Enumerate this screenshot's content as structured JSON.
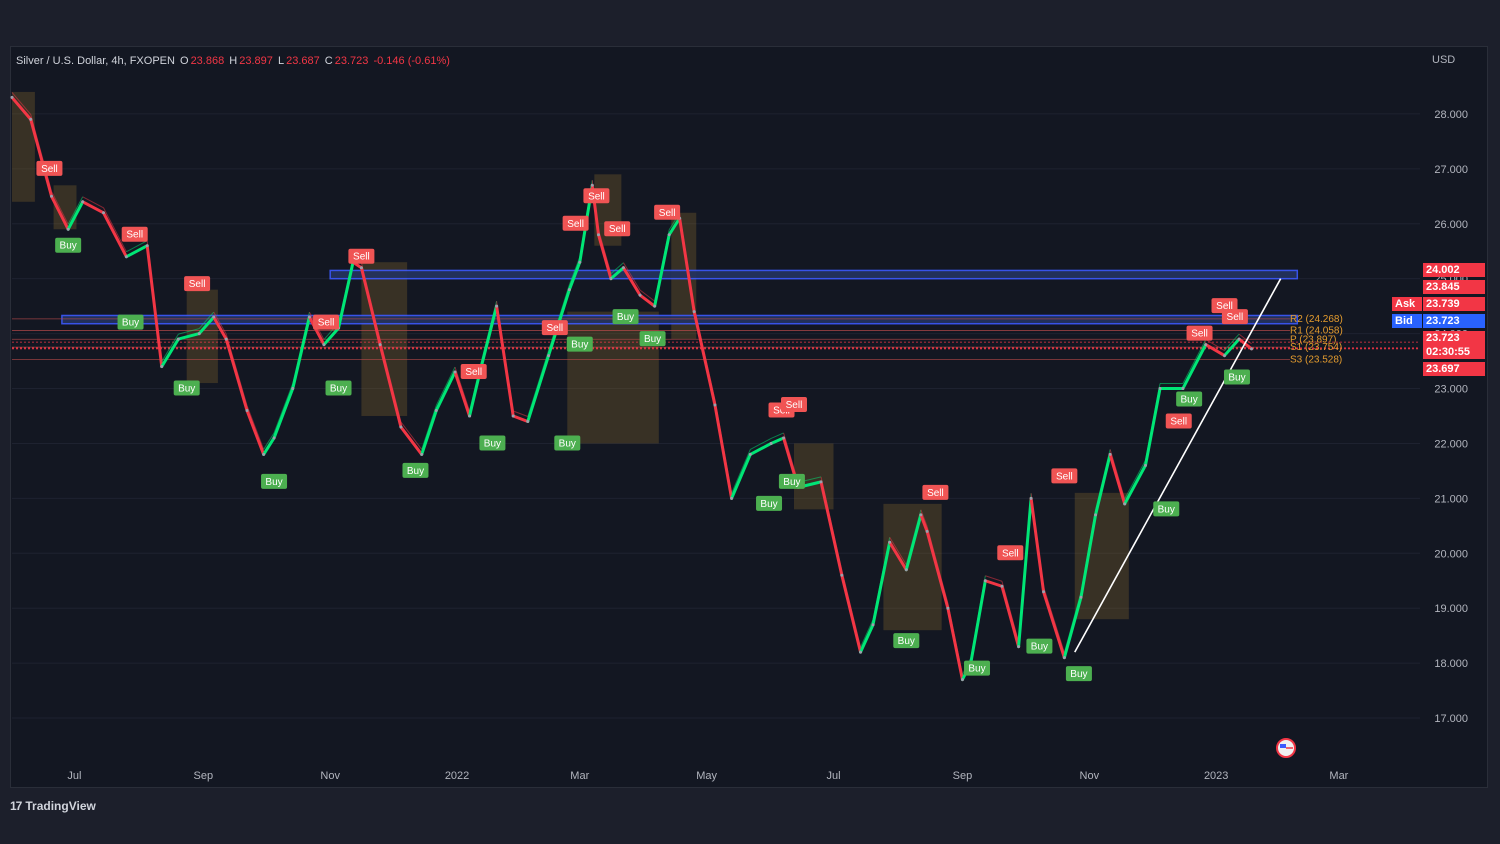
{
  "header": {
    "symbol": "Silver / U.S. Dollar, 4h, FXOPEN",
    "open_label": "O",
    "open": "23.868",
    "high_label": "H",
    "high": "23.897",
    "low_label": "L",
    "low": "23.687",
    "close_label": "C",
    "close": "23.723",
    "change": "-0.146 (-0.61%)"
  },
  "currency": "USD",
  "brand": {
    "logo": "17",
    "name": "TradingView"
  },
  "price_tags": {
    "high_tag": "24.002",
    "level_tag": "23.845",
    "ask_label": "Ask",
    "ask": "23.739",
    "bid_label": "Bid",
    "bid": "23.723",
    "last": "23.723",
    "countdown": "02:30:55",
    "low_tag": "23.697"
  },
  "pivot_labels": [
    "R2 (24.268)",
    "R1 (24.058)",
    "P (23.897)",
    "S1 (23.754)",
    "S3 (23.528)"
  ],
  "colors": {
    "up": "#00e676",
    "down": "#f23645",
    "band": "#3d5afe",
    "buy": "#4caf50",
    "sell": "#f05454",
    "trend": "#ffffff",
    "box": "#8a6a2a"
  },
  "chart_data": {
    "type": "line",
    "title": "Silver / U.S. Dollar, 4h, FXOPEN",
    "ylabel": "USD",
    "ylim": [
      16.2,
      29.2
    ],
    "y_ticks": [
      28,
      27,
      26,
      25,
      24,
      23,
      22,
      21,
      20,
      19,
      18,
      17
    ],
    "y_tick_labels": [
      "28.000",
      "27.000",
      "26.000",
      "25.000",
      "24.000",
      "23.000",
      "22.000",
      "21.000",
      "20.000",
      "19.000",
      "18.000",
      "17.000"
    ],
    "x_range": [
      "2021-06-01",
      "2023-04-09"
    ],
    "x_ticks": [
      {
        "date": "2021-07-01",
        "label": "Jul"
      },
      {
        "date": "2021-09-01",
        "label": "Sep"
      },
      {
        "date": "2021-11-01",
        "label": "Nov"
      },
      {
        "date": "2022-01-01",
        "label": "2022"
      },
      {
        "date": "2022-03-01",
        "label": "Mar"
      },
      {
        "date": "2022-05-01",
        "label": "May"
      },
      {
        "date": "2022-07-01",
        "label": "Jul"
      },
      {
        "date": "2022-09-01",
        "label": "Sep"
      },
      {
        "date": "2022-11-01",
        "label": "Nov"
      },
      {
        "date": "2023-01-01",
        "label": "2023"
      },
      {
        "date": "2023-03-01",
        "label": "Mar"
      }
    ],
    "series": [
      {
        "points": [
          [
            "2021-06-01",
            28.3
          ],
          [
            "2021-06-10",
            27.9
          ],
          [
            "2021-06-20",
            26.5
          ],
          [
            "2021-06-28",
            25.9
          ],
          [
            "2021-07-05",
            26.4
          ],
          [
            "2021-07-15",
            26.2
          ],
          [
            "2021-07-26",
            25.4
          ],
          [
            "2021-08-05",
            25.6
          ],
          [
            "2021-08-12",
            23.4
          ],
          [
            "2021-08-20",
            23.9
          ],
          [
            "2021-08-30",
            24.0
          ],
          [
            "2021-09-06",
            24.3
          ],
          [
            "2021-09-12",
            23.9
          ],
          [
            "2021-09-22",
            22.6
          ],
          [
            "2021-09-30",
            21.8
          ],
          [
            "2021-10-05",
            22.1
          ],
          [
            "2021-10-14",
            23.0
          ],
          [
            "2021-10-22",
            24.3
          ],
          [
            "2021-10-29",
            23.8
          ],
          [
            "2021-11-05",
            24.1
          ],
          [
            "2021-11-12",
            25.3
          ],
          [
            "2021-11-16",
            25.2
          ],
          [
            "2021-11-25",
            23.8
          ],
          [
            "2021-12-05",
            22.3
          ],
          [
            "2021-12-15",
            21.8
          ],
          [
            "2021-12-22",
            22.6
          ],
          [
            "2021-12-31",
            23.3
          ],
          [
            "2022-01-07",
            22.5
          ],
          [
            "2022-01-12",
            23.3
          ],
          [
            "2022-01-20",
            24.5
          ],
          [
            "2022-01-28",
            22.5
          ],
          [
            "2022-02-04",
            22.4
          ],
          [
            "2022-02-14",
            23.6
          ],
          [
            "2022-02-24",
            24.8
          ],
          [
            "2022-03-01",
            25.3
          ],
          [
            "2022-03-07",
            26.7
          ],
          [
            "2022-03-10",
            25.8
          ],
          [
            "2022-03-16",
            25.0
          ],
          [
            "2022-03-22",
            25.2
          ],
          [
            "2022-03-30",
            24.7
          ],
          [
            "2022-04-06",
            24.5
          ],
          [
            "2022-04-13",
            25.8
          ],
          [
            "2022-04-18",
            26.1
          ],
          [
            "2022-04-25",
            24.4
          ],
          [
            "2022-05-05",
            22.7
          ],
          [
            "2022-05-13",
            21.0
          ],
          [
            "2022-05-22",
            21.8
          ],
          [
            "2022-06-01",
            22.0
          ],
          [
            "2022-06-07",
            22.1
          ],
          [
            "2022-06-14",
            21.2
          ],
          [
            "2022-06-25",
            21.3
          ],
          [
            "2022-07-05",
            19.6
          ],
          [
            "2022-07-14",
            18.2
          ],
          [
            "2022-07-20",
            18.7
          ],
          [
            "2022-07-28",
            20.2
          ],
          [
            "2022-08-05",
            19.7
          ],
          [
            "2022-08-12",
            20.7
          ],
          [
            "2022-08-15",
            20.4
          ],
          [
            "2022-08-25",
            19.0
          ],
          [
            "2022-09-01",
            17.7
          ],
          [
            "2022-09-05",
            18.0
          ],
          [
            "2022-09-12",
            19.5
          ],
          [
            "2022-09-20",
            19.4
          ],
          [
            "2022-09-28",
            18.3
          ],
          [
            "2022-10-04",
            21.0
          ],
          [
            "2022-10-10",
            19.3
          ],
          [
            "2022-10-20",
            18.1
          ],
          [
            "2022-10-28",
            19.2
          ],
          [
            "2022-11-04",
            20.7
          ],
          [
            "2022-11-11",
            21.8
          ],
          [
            "2022-11-18",
            20.9
          ],
          [
            "2022-11-28",
            21.6
          ],
          [
            "2022-12-05",
            23.0
          ],
          [
            "2022-12-16",
            23.0
          ],
          [
            "2022-12-27",
            23.8
          ],
          [
            "2023-01-05",
            23.6
          ],
          [
            "2023-01-12",
            23.9
          ],
          [
            "2023-01-18",
            23.723
          ]
        ]
      }
    ],
    "horizontal_bands": [
      {
        "from": 25.0,
        "to": 25.15,
        "x_start": "2021-11-01",
        "x_end": "2023-02-09"
      },
      {
        "from": 24.18,
        "to": 24.33,
        "x_start": "2021-06-25",
        "x_end": "2023-02-09"
      }
    ],
    "pivot_levels": [
      24.268,
      24.058,
      23.897,
      23.754,
      23.528
    ],
    "price_lines": [
      23.845,
      23.739,
      23.723
    ],
    "trendline": [
      [
        "2022-10-25",
        18.2
      ],
      [
        "2023-02-01",
        25.0
      ]
    ],
    "signals": [
      {
        "label": "Sell",
        "date": "2021-06-19",
        "price": 27.0
      },
      {
        "label": "Buy",
        "date": "2021-06-28",
        "price": 25.6
      },
      {
        "label": "Sell",
        "date": "2021-07-30",
        "price": 25.8
      },
      {
        "label": "Buy",
        "date": "2021-07-28",
        "price": 24.2
      },
      {
        "label": "Sell",
        "date": "2021-08-29",
        "price": 24.9
      },
      {
        "label": "Buy",
        "date": "2021-08-24",
        "price": 23.0
      },
      {
        "label": "Buy",
        "date": "2021-10-05",
        "price": 21.3
      },
      {
        "label": "Sell",
        "date": "2021-10-30",
        "price": 24.2
      },
      {
        "label": "Buy",
        "date": "2021-11-05",
        "price": 23.0
      },
      {
        "label": "Sell",
        "date": "2021-11-16",
        "price": 25.4
      },
      {
        "label": "Buy",
        "date": "2021-12-12",
        "price": 21.5
      },
      {
        "label": "Sell",
        "date": "2022-01-09",
        "price": 23.3
      },
      {
        "label": "Buy",
        "date": "2022-01-18",
        "price": 22.0
      },
      {
        "label": "Sell",
        "date": "2022-02-17",
        "price": 24.1
      },
      {
        "label": "Buy",
        "date": "2022-02-23",
        "price": 22.0
      },
      {
        "label": "Sell",
        "date": "2022-02-27",
        "price": 26.0
      },
      {
        "label": "Buy",
        "date": "2022-03-01",
        "price": 23.8
      },
      {
        "label": "Sell",
        "date": "2022-03-09",
        "price": 26.5
      },
      {
        "label": "Sell",
        "date": "2022-03-19",
        "price": 25.9
      },
      {
        "label": "Buy",
        "date": "2022-03-23",
        "price": 24.3
      },
      {
        "label": "Buy",
        "date": "2022-04-05",
        "price": 23.9
      },
      {
        "label": "Sell",
        "date": "2022-04-12",
        "price": 26.2
      },
      {
        "label": "Sell",
        "date": "2022-06-06",
        "price": 22.6
      },
      {
        "label": "Sell",
        "date": "2022-06-12",
        "price": 22.7
      },
      {
        "label": "Buy",
        "date": "2022-06-11",
        "price": 21.3
      },
      {
        "label": "Buy",
        "date": "2022-05-31",
        "price": 20.9
      },
      {
        "label": "Sell",
        "date": "2022-08-19",
        "price": 21.1
      },
      {
        "label": "Buy",
        "date": "2022-08-05",
        "price": 18.4
      },
      {
        "label": "Sell",
        "date": "2022-09-24",
        "price": 20.0
      },
      {
        "label": "Buy",
        "date": "2022-09-08",
        "price": 17.9
      },
      {
        "label": "Buy",
        "date": "2022-10-08",
        "price": 18.3
      },
      {
        "label": "Sell",
        "date": "2022-10-20",
        "price": 21.4
      },
      {
        "label": "Buy",
        "date": "2022-10-27",
        "price": 17.8
      },
      {
        "label": "Sell",
        "date": "2022-12-14",
        "price": 22.4
      },
      {
        "label": "Buy",
        "date": "2022-12-08",
        "price": 20.8
      },
      {
        "label": "Buy",
        "date": "2022-12-19",
        "price": 22.8
      },
      {
        "label": "Sell",
        "date": "2022-12-24",
        "price": 24.0
      },
      {
        "label": "Sell",
        "date": "2023-01-05",
        "price": 24.5
      },
      {
        "label": "Sell",
        "date": "2023-01-10",
        "price": 24.3
      },
      {
        "label": "Buy",
        "date": "2023-01-11",
        "price": 23.2
      }
    ],
    "brown_boxes": [
      {
        "x0": "2021-06-01",
        "x1": "2021-06-12",
        "y0": 26.4,
        "y1": 28.4
      },
      {
        "x0": "2021-06-21",
        "x1": "2021-07-02",
        "y0": 25.9,
        "y1": 26.7
      },
      {
        "x0": "2021-08-24",
        "x1": "2021-09-08",
        "y0": 23.1,
        "y1": 24.8
      },
      {
        "x0": "2021-11-16",
        "x1": "2021-12-08",
        "y0": 22.5,
        "y1": 25.3
      },
      {
        "x0": "2022-02-23",
        "x1": "2022-04-08",
        "y0": 22.0,
        "y1": 24.4
      },
      {
        "x0": "2022-03-08",
        "x1": "2022-03-21",
        "y0": 25.6,
        "y1": 26.9
      },
      {
        "x0": "2022-04-14",
        "x1": "2022-04-26",
        "y0": 23.9,
        "y1": 26.2
      },
      {
        "x0": "2022-06-12",
        "x1": "2022-07-01",
        "y0": 20.8,
        "y1": 22.0
      },
      {
        "x0": "2022-07-25",
        "x1": "2022-08-22",
        "y0": 18.6,
        "y1": 20.9
      },
      {
        "x0": "2022-10-25",
        "x1": "2022-11-20",
        "y0": 18.8,
        "y1": 21.1
      }
    ]
  }
}
